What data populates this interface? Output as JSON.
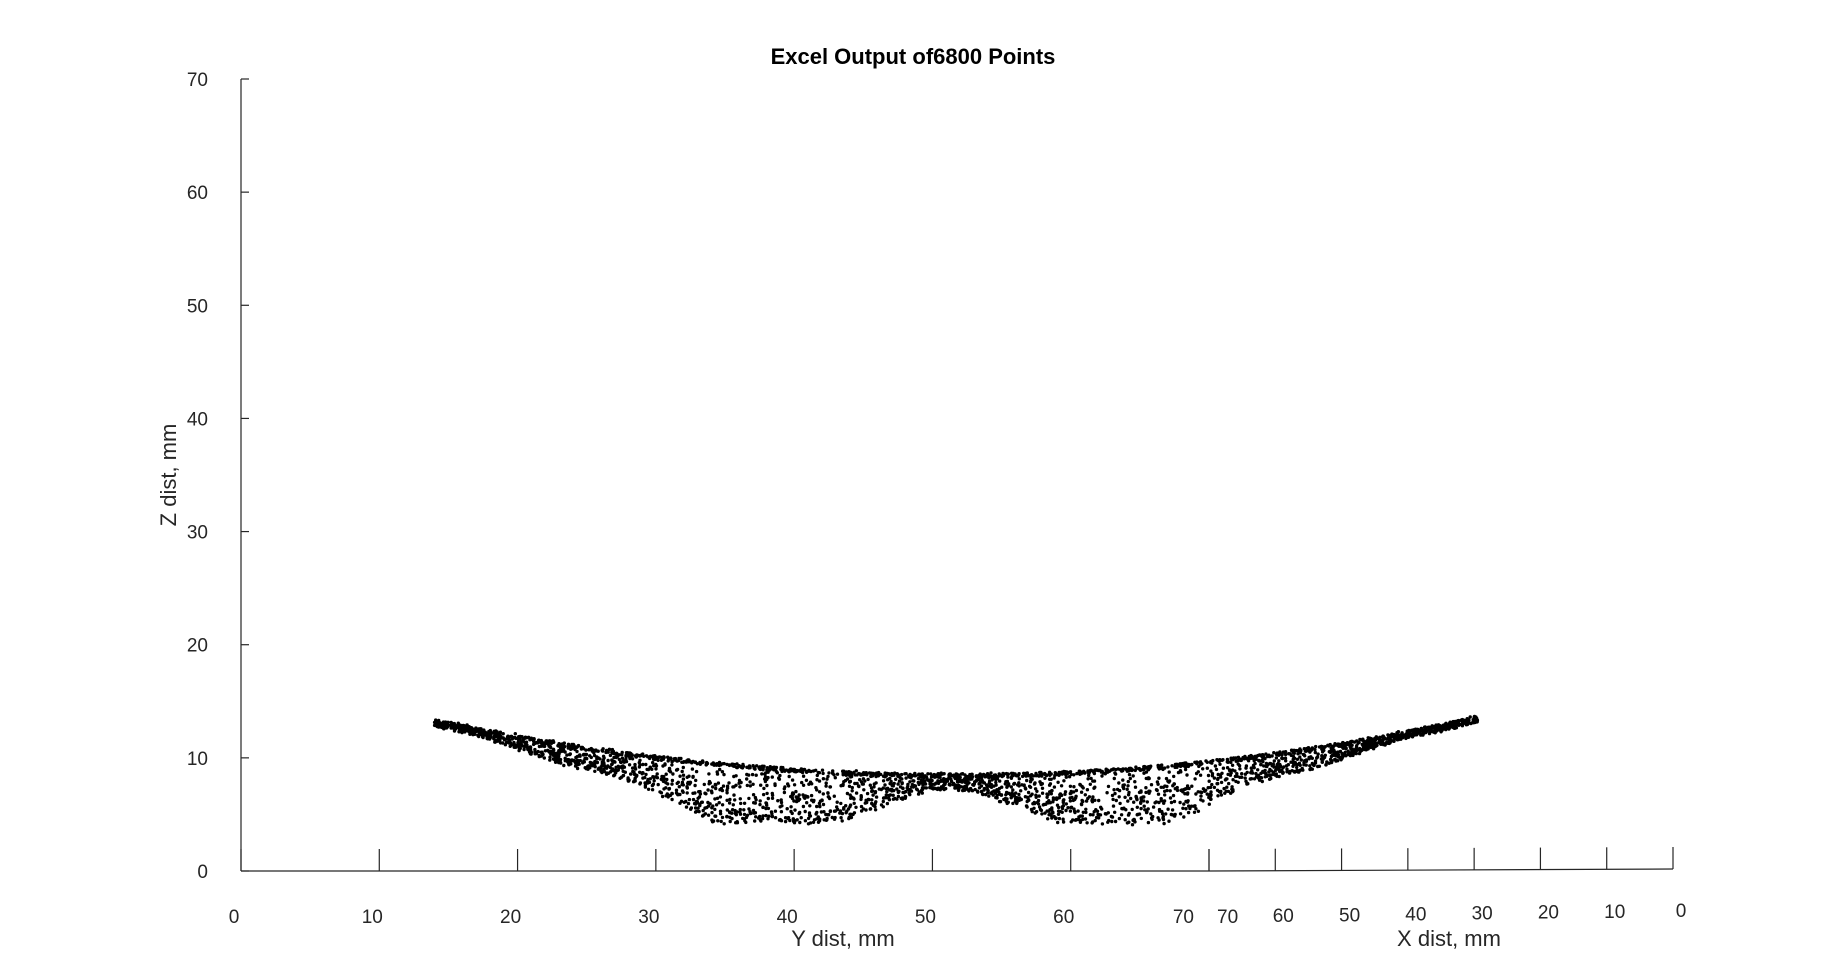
{
  "chart_data": {
    "type": "scatter",
    "projection": "3d",
    "title": "Excel Output of6800 Points",
    "zlabel": "Z dist, mm",
    "ylabel": "Y dist, mm",
    "xlabel": "X dist, mm",
    "zlim": [
      0,
      70
    ],
    "ylim": [
      0,
      70
    ],
    "xlim": [
      0,
      70
    ],
    "z_ticks": [
      "0",
      "10",
      "20",
      "30",
      "40",
      "50",
      "60",
      "70"
    ],
    "y_ticks": [
      "0",
      "10",
      "20",
      "30",
      "40",
      "50",
      "60",
      "70"
    ],
    "x_ticks": [
      "70",
      "60",
      "50",
      "40",
      "30",
      "20",
      "10",
      "0"
    ],
    "point_color": "#000000",
    "point_count": 6800,
    "sample_points_y_z": [
      [
        14,
        13.2
      ],
      [
        17,
        12.4
      ],
      [
        20,
        11.8
      ],
      [
        25,
        11.0
      ],
      [
        30,
        10.2
      ],
      [
        35,
        9.6
      ],
      [
        40,
        9.1
      ],
      [
        45,
        8.8
      ],
      [
        50,
        8.6
      ],
      [
        55,
        8.6
      ],
      [
        60,
        8.8
      ],
      [
        65,
        9.3
      ],
      [
        70,
        9.9
      ],
      [
        20,
        10.8
      ],
      [
        25,
        9.5
      ],
      [
        30,
        8.0
      ],
      [
        33,
        6.5
      ],
      [
        35,
        5.6
      ],
      [
        38,
        4.5
      ],
      [
        41,
        5.0
      ],
      [
        44,
        6.0
      ],
      [
        47,
        7.0
      ],
      [
        50,
        7.6
      ],
      [
        53,
        7.2
      ],
      [
        56,
        6.3
      ],
      [
        59,
        5.4
      ],
      [
        62,
        4.5
      ],
      [
        65,
        4.8
      ],
      [
        68,
        6.2
      ],
      [
        70,
        7.5
      ]
    ]
  }
}
